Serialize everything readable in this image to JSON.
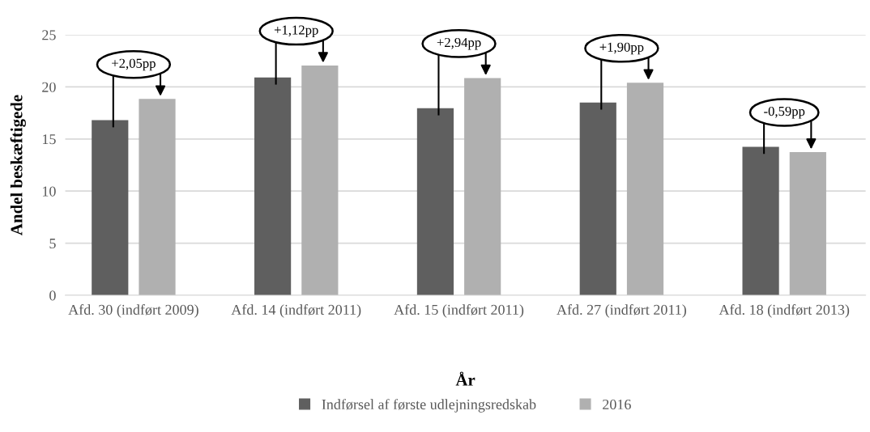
{
  "chart_data": {
    "type": "bar",
    "xlabel": "År",
    "ylabel": "Andel beskæftigede",
    "categories": [
      "Afd. 30 (indført 2009)",
      "Afd. 14 (indført 2011)",
      "Afd. 15 (indført 2011)",
      "Afd. 27 (indført 2011)",
      "Afd. 18 (indført 2013)"
    ],
    "series": [
      {
        "name": "Indførsel af første udlejningsredskab",
        "color": "#5f5f5f",
        "values": [
          16.8,
          20.9,
          17.95,
          18.5,
          14.25
        ]
      },
      {
        "name": "2016",
        "color": "#b0b0b0",
        "values": [
          18.85,
          22.05,
          20.85,
          20.4,
          13.75
        ]
      }
    ],
    "ylim": [
      0,
      25
    ],
    "yticks": [
      0,
      5,
      10,
      15,
      20,
      25
    ],
    "grid": "y",
    "legend": "bottom",
    "annotations": [
      "+2,05pp",
      "+1,12pp",
      "+2,94pp",
      "+1,90pp",
      "-0,59pp"
    ]
  }
}
